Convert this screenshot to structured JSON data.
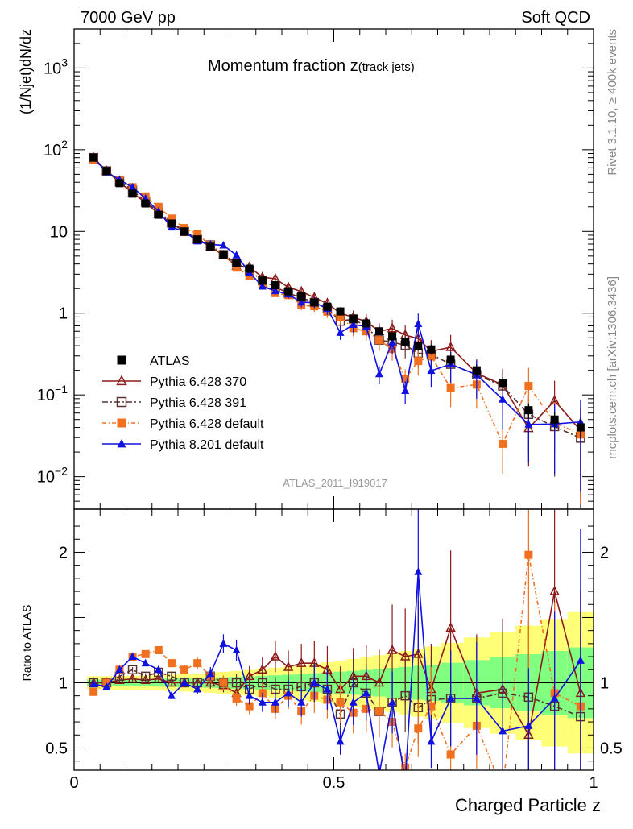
{
  "header": {
    "left": "7000 GeV pp",
    "right": "Soft QCD"
  },
  "side_text": {
    "rivet": "Rivet 3.1.10, ≥ 400k events",
    "mcplots": "mcplots.cern.ch [arXiv:1306.3436]"
  },
  "chart_data": {
    "type": "line",
    "title": "Momentum fraction",
    "title_var": "z",
    "title_sub": "(track jets)",
    "xlabel": "Charged Particle z",
    "ylabel": "(1/Njet)dN/dz",
    "ratio_ylabel": "Ratio to ATLAS",
    "analysis_tag": "ATLAS_2011_I919017",
    "xlim": [
      0,
      1
    ],
    "ylim": [
      0.004,
      3000
    ],
    "yscale": "log",
    "ratio_ylim": [
      0.33,
      2.33
    ],
    "x_ticks": [
      "0",
      "0.5",
      "1"
    ],
    "y_ticks": [
      {
        "value": 0.01,
        "base": "10",
        "exp": "−2"
      },
      {
        "value": 0.1,
        "base": "10",
        "exp": "−1"
      },
      {
        "value": 1,
        "base": "1",
        "exp": ""
      },
      {
        "value": 10,
        "base": "10",
        "exp": ""
      },
      {
        "value": 100,
        "base": "10",
        "exp": "2"
      },
      {
        "value": 1000,
        "base": "10",
        "exp": "3"
      }
    ],
    "ratio_ticks": [
      "0.5",
      "1",
      "2"
    ],
    "legend_position": "bottom-left",
    "x": [
      0.0375,
      0.0625,
      0.0875,
      0.1125,
      0.1375,
      0.1625,
      0.1875,
      0.2125,
      0.2375,
      0.2625,
      0.2875,
      0.3125,
      0.3375,
      0.3625,
      0.3875,
      0.4125,
      0.4375,
      0.4625,
      0.4875,
      0.5125,
      0.5375,
      0.5625,
      0.5875,
      0.6125,
      0.6375,
      0.6625,
      0.6875,
      0.725,
      0.775,
      0.825,
      0.875,
      0.925,
      0.975
    ],
    "data": {
      "name": "ATLAS",
      "values": [
        80,
        55,
        39,
        29,
        22,
        16,
        12.5,
        10,
        8,
        6.5,
        5.2,
        4.1,
        3.5,
        2.5,
        2.2,
        1.85,
        1.6,
        1.35,
        1.2,
        1.05,
        0.85,
        0.75,
        0.6,
        0.52,
        0.45,
        0.4,
        0.36,
        0.27,
        0.2,
        0.14,
        0.065,
        0.05,
        0.04
      ]
    },
    "series": [
      {
        "name": "Pythia 6.428 370",
        "color": "#8b1a1a",
        "marker": "triangle-open",
        "dash": "",
        "ratio": [
          1.0,
          1.0,
          1.02,
          1.03,
          1.02,
          1.03,
          1.0,
          1.0,
          1.0,
          1.0,
          0.98,
          0.92,
          1.05,
          1.1,
          1.2,
          1.12,
          1.15,
          1.15,
          1.1,
          0.95,
          1.05,
          1.05,
          1.0,
          1.25,
          1.2,
          1.22,
          0.95,
          1.42,
          0.92,
          0.95,
          0.6,
          1.7,
          0.92
        ]
      },
      {
        "name": "Pythia 6.428 391",
        "color": "#5a3030",
        "marker": "square-open",
        "dash": "7 3 2 3",
        "ratio": [
          1.0,
          1.0,
          1.05,
          1.1,
          1.05,
          1.08,
          1.05,
          1.0,
          1.0,
          1.05,
          1.0,
          1.0,
          0.95,
          1.0,
          0.95,
          0.95,
          0.97,
          1.0,
          0.95,
          0.76,
          1.0,
          0.92,
          0.78,
          0.85,
          0.9,
          0.81,
          0.87,
          0.88,
          0.88,
          0.92,
          0.89,
          0.82,
          0.74
        ]
      },
      {
        "name": "Pythia 6.428 default",
        "color": "#f07020",
        "marker": "square-filled",
        "dash": "5 3 1 3",
        "ratio": [
          0.93,
          1.0,
          1.1,
          1.2,
          1.22,
          1.25,
          1.15,
          1.1,
          1.15,
          1.05,
          1.0,
          0.88,
          0.82,
          0.92,
          0.8,
          0.9,
          0.78,
          0.9,
          0.87,
          0.85,
          0.77,
          0.8,
          0.78,
          0.7,
          0.35,
          0.65,
          0.82,
          0.45,
          0.67,
          0.18,
          1.98,
          0.92,
          0.82
        ]
      },
      {
        "name": "Pythia 8.201 default",
        "color": "#1010e0",
        "marker": "triangle-filled",
        "dash": "",
        "ratio": [
          0.99,
          0.97,
          1.1,
          1.2,
          1.15,
          1.1,
          0.9,
          1.0,
          0.95,
          1.07,
          1.3,
          1.25,
          0.9,
          0.85,
          0.85,
          0.92,
          0.85,
          1.0,
          0.95,
          0.55,
          0.85,
          0.92,
          0.3,
          0.85,
          0.25,
          1.85,
          0.55,
          0.88,
          0.88,
          0.63,
          0.67,
          0.88,
          1.17
        ]
      }
    ]
  }
}
